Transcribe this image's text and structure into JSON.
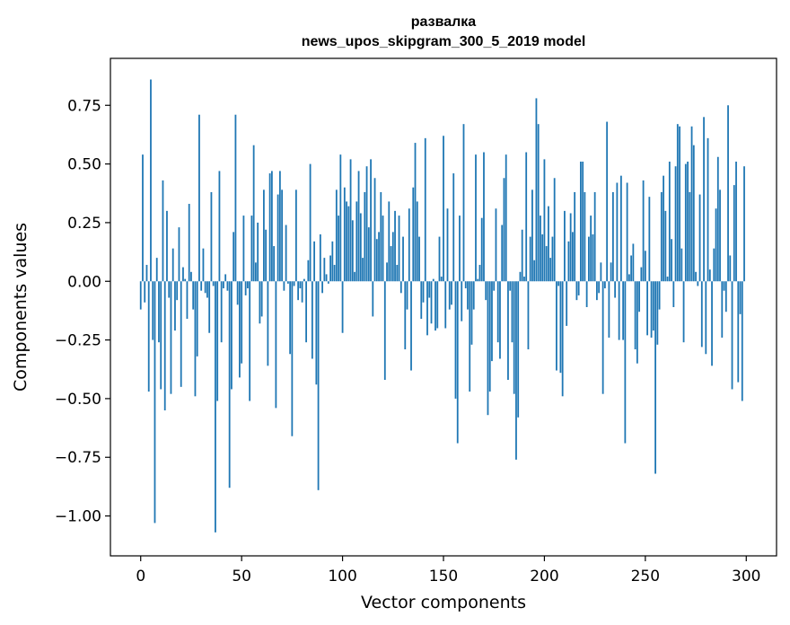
{
  "chart_data": {
    "type": "bar",
    "title": "развалка",
    "subtitle": "news_upos_skipgram_300_5_2019 model",
    "xlabel": "Vector components",
    "ylabel": "Components values",
    "xlim": [
      -15,
      315
    ],
    "ylim": [
      -1.17,
      0.95
    ],
    "xticks": [
      0,
      50,
      100,
      150,
      200,
      250,
      300
    ],
    "xtick_labels": [
      "0",
      "50",
      "100",
      "150",
      "200",
      "250",
      "300"
    ],
    "yticks": [
      -1.0,
      -0.75,
      -0.5,
      -0.25,
      0.0,
      0.25,
      0.5,
      0.75
    ],
    "ytick_labels": [
      "−1.00",
      "−0.75",
      "−0.50",
      "−0.25",
      "0.00",
      "0.25",
      "0.50",
      "0.75"
    ],
    "bar_color": "#1f77b4",
    "grid": false,
    "x": [
      0,
      1,
      2,
      3,
      4,
      5,
      6,
      7,
      8,
      9,
      10,
      11,
      12,
      13,
      14,
      15,
      16,
      17,
      18,
      19,
      20,
      21,
      22,
      23,
      24,
      25,
      26,
      27,
      28,
      29,
      30,
      31,
      32,
      33,
      34,
      35,
      36,
      37,
      38,
      39,
      40,
      41,
      42,
      43,
      44,
      45,
      46,
      47,
      48,
      49,
      50,
      51,
      52,
      53,
      54,
      55,
      56,
      57,
      58,
      59,
      60,
      61,
      62,
      63,
      64,
      65,
      66,
      67,
      68,
      69,
      70,
      71,
      72,
      73,
      74,
      75,
      76,
      77,
      78,
      79,
      80,
      81,
      82,
      83,
      84,
      85,
      86,
      87,
      88,
      89,
      90,
      91,
      92,
      93,
      94,
      95,
      96,
      97,
      98,
      99,
      100,
      101,
      102,
      103,
      104,
      105,
      106,
      107,
      108,
      109,
      110,
      111,
      112,
      113,
      114,
      115,
      116,
      117,
      118,
      119,
      120,
      121,
      122,
      123,
      124,
      125,
      126,
      127,
      128,
      129,
      130,
      131,
      132,
      133,
      134,
      135,
      136,
      137,
      138,
      139,
      140,
      141,
      142,
      143,
      144,
      145,
      146,
      147,
      148,
      149,
      150,
      151,
      152,
      153,
      154,
      155,
      156,
      157,
      158,
      159,
      160,
      161,
      162,
      163,
      164,
      165,
      166,
      167,
      168,
      169,
      170,
      171,
      172,
      173,
      174,
      175,
      176,
      177,
      178,
      179,
      180,
      181,
      182,
      183,
      184,
      185,
      186,
      187,
      188,
      189,
      190,
      191,
      192,
      193,
      194,
      195,
      196,
      197,
      198,
      199,
      200,
      201,
      202,
      203,
      204,
      205,
      206,
      207,
      208,
      209,
      210,
      211,
      212,
      213,
      214,
      215,
      216,
      217,
      218,
      219,
      220,
      221,
      222,
      223,
      224,
      225,
      226,
      227,
      228,
      229,
      230,
      231,
      232,
      233,
      234,
      235,
      236,
      237,
      238,
      239,
      240,
      241,
      242,
      243,
      244,
      245,
      246,
      247,
      248,
      249,
      250,
      251,
      252,
      253,
      254,
      255,
      256,
      257,
      258,
      259,
      260,
      261,
      262,
      263,
      264,
      265,
      266,
      267,
      268,
      269,
      270,
      271,
      272,
      273,
      274,
      275,
      276,
      277,
      278,
      279,
      280,
      281,
      282,
      283,
      284,
      285,
      286,
      287,
      288,
      289,
      290,
      291,
      292,
      293,
      294,
      295,
      296,
      297,
      298,
      299
    ],
    "values": [
      -0.12,
      0.54,
      -0.09,
      0.07,
      -0.47,
      0.86,
      -0.25,
      -1.03,
      0.1,
      -0.26,
      -0.46,
      0.43,
      -0.55,
      0.3,
      -0.07,
      -0.48,
      0.14,
      -0.21,
      -0.08,
      0.23,
      -0.45,
      0.06,
      0.01,
      -0.16,
      0.33,
      0.04,
      -0.12,
      -0.49,
      -0.32,
      0.71,
      -0.04,
      0.14,
      -0.05,
      -0.07,
      -0.22,
      0.38,
      -0.02,
      -1.07,
      -0.51,
      0.47,
      -0.26,
      -0.03,
      0.03,
      -0.04,
      -0.88,
      -0.46,
      0.21,
      0.71,
      -0.1,
      -0.41,
      -0.35,
      0.28,
      -0.06,
      -0.03,
      -0.51,
      0.28,
      0.58,
      0.08,
      0.25,
      -0.18,
      -0.15,
      0.39,
      0.22,
      -0.36,
      0.46,
      0.47,
      0.15,
      -0.54,
      0.37,
      0.47,
      0.39,
      -0.04,
      0.24,
      -0.01,
      -0.31,
      -0.66,
      -0.02,
      0.39,
      -0.08,
      -0.03,
      -0.09,
      0.01,
      -0.26,
      0.09,
      0.5,
      -0.33,
      0.17,
      -0.44,
      -0.89,
      0.2,
      -0.05,
      0.1,
      0.03,
      -0.01,
      0.11,
      0.17,
      0.07,
      0.39,
      0.28,
      0.54,
      -0.22,
      0.4,
      0.34,
      0.32,
      0.52,
      0.26,
      0.04,
      0.34,
      0.47,
      0.29,
      0.1,
      0.38,
      0.49,
      0.23,
      0.52,
      -0.15,
      0.44,
      0.18,
      0.21,
      0.38,
      0.28,
      -0.42,
      0.08,
      0.34,
      0.15,
      0.21,
      0.3,
      0.07,
      0.28,
      -0.05,
      0.19,
      -0.29,
      -0.12,
      0.31,
      -0.38,
      0.4,
      0.59,
      0.34,
      0.19,
      -0.16,
      -0.09,
      0.61,
      -0.23,
      -0.07,
      -0.18,
      0.01,
      -0.21,
      -0.2,
      0.19,
      0.02,
      0.62,
      -0.2,
      0.31,
      -0.12,
      -0.1,
      0.46,
      -0.5,
      -0.69,
      0.28,
      -0.17,
      0.67,
      -0.03,
      -0.12,
      -0.47,
      -0.27,
      -0.12,
      0.54,
      0.01,
      0.07,
      0.27,
      0.55,
      -0.08,
      -0.57,
      -0.47,
      -0.34,
      -0.04,
      0.31,
      -0.26,
      -0.33,
      0.24,
      0.44,
      0.54,
      -0.42,
      -0.04,
      -0.26,
      -0.48,
      -0.76,
      -0.58,
      0.04,
      0.22,
      0.02,
      0.55,
      -0.29,
      0.19,
      0.39,
      0.09,
      0.78,
      0.67,
      0.28,
      0.2,
      0.52,
      0.15,
      0.32,
      0.1,
      0.19,
      0.44,
      -0.38,
      -0.02,
      -0.39,
      -0.49,
      0.3,
      -0.19,
      0.17,
      0.29,
      0.21,
      0.38,
      -0.08,
      -0.06,
      0.51,
      0.51,
      0.38,
      -0.11,
      0.19,
      0.28,
      0.2,
      0.38,
      -0.08,
      -0.05,
      0.08,
      -0.48,
      -0.03,
      0.68,
      -0.24,
      0.08,
      0.38,
      -0.07,
      0.42,
      -0.25,
      0.45,
      -0.25,
      -0.69,
      0.42,
      0.03,
      0.11,
      0.16,
      -0.29,
      -0.35,
      -0.13,
      0.06,
      0.43,
      0.13,
      -0.23,
      0.36,
      -0.24,
      -0.21,
      -0.82,
      -0.27,
      -0.12,
      0.38,
      0.45,
      0.3,
      0.02,
      0.51,
      0.18,
      -0.11,
      0.49,
      0.67,
      0.66,
      0.14,
      -0.26,
      0.5,
      0.51,
      0.38,
      0.66,
      0.58,
      0.04,
      -0.02,
      0.37,
      -0.28,
      0.7,
      -0.31,
      0.61,
      0.05,
      -0.36,
      0.14,
      0.31,
      0.53,
      0.39,
      -0.24,
      -0.04,
      -0.13,
      0.75,
      0.11,
      -0.46,
      0.41,
      0.51,
      -0.43,
      -0.14,
      -0.51,
      0.49
    ]
  }
}
